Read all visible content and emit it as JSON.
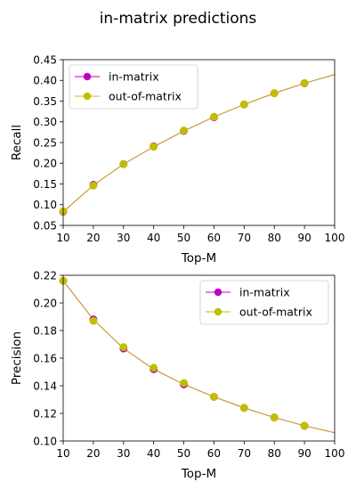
{
  "figure": {
    "title": "in-matrix predictions"
  },
  "colors": {
    "in_matrix": "#bf00bf",
    "out_of_matrix": "#bfbf00",
    "curve": "#c8902a"
  },
  "chart_data": [
    {
      "type": "line",
      "xlabel": "Top-M",
      "ylabel": "Recall",
      "xlim": [
        10,
        100
      ],
      "ylim": [
        0.05,
        0.45
      ],
      "xticks": [
        "10",
        "20",
        "30",
        "40",
        "50",
        "60",
        "70",
        "80",
        "90",
        "100"
      ],
      "yticks": [
        "0.05",
        "0.10",
        "0.15",
        "0.20",
        "0.25",
        "0.30",
        "0.35",
        "0.40",
        "0.45"
      ],
      "legend_position": "upper-left",
      "curve": {
        "x": [
          10,
          20,
          30,
          40,
          50,
          60,
          70,
          80,
          90,
          100
        ],
        "y": [
          0.083,
          0.147,
          0.198,
          0.24,
          0.278,
          0.312,
          0.342,
          0.369,
          0.393,
          0.414
        ]
      },
      "series": [
        {
          "name": "in-matrix",
          "x": [
            10,
            20,
            30,
            40,
            50,
            60,
            70,
            80,
            90
          ],
          "y": [
            0.083,
            0.148,
            0.198,
            0.241,
            0.278,
            0.311,
            0.342,
            0.369,
            0.393
          ]
        },
        {
          "name": "out-of-matrix",
          "x": [
            10,
            20,
            30,
            40,
            50,
            60,
            70,
            80,
            90
          ],
          "y": [
            0.084,
            0.146,
            0.198,
            0.24,
            0.279,
            0.312,
            0.342,
            0.369,
            0.393
          ]
        }
      ]
    },
    {
      "type": "line",
      "xlabel": "Top-M",
      "ylabel": "Precision",
      "xlim": [
        10,
        100
      ],
      "ylim": [
        0.1,
        0.22
      ],
      "xticks": [
        "10",
        "20",
        "30",
        "40",
        "50",
        "60",
        "70",
        "80",
        "90",
        "100"
      ],
      "yticks": [
        "0.10",
        "0.12",
        "0.14",
        "0.16",
        "0.18",
        "0.20",
        "0.22"
      ],
      "legend_position": "upper-right",
      "curve": {
        "x": [
          10,
          20,
          30,
          40,
          50,
          60,
          70,
          80,
          90,
          100
        ],
        "y": [
          0.216,
          0.188,
          0.167,
          0.152,
          0.141,
          0.132,
          0.124,
          0.117,
          0.111,
          0.106
        ]
      },
      "series": [
        {
          "name": "in-matrix",
          "x": [
            10,
            20,
            30,
            40,
            50,
            60,
            70,
            80,
            90
          ],
          "y": [
            0.216,
            0.188,
            0.167,
            0.152,
            0.141,
            0.132,
            0.124,
            0.117,
            0.111
          ]
        },
        {
          "name": "out-of-matrix",
          "x": [
            10,
            20,
            30,
            40,
            50,
            60,
            70,
            80,
            90
          ],
          "y": [
            0.216,
            0.187,
            0.168,
            0.153,
            0.142,
            0.132,
            0.124,
            0.117,
            0.111
          ]
        }
      ]
    }
  ]
}
